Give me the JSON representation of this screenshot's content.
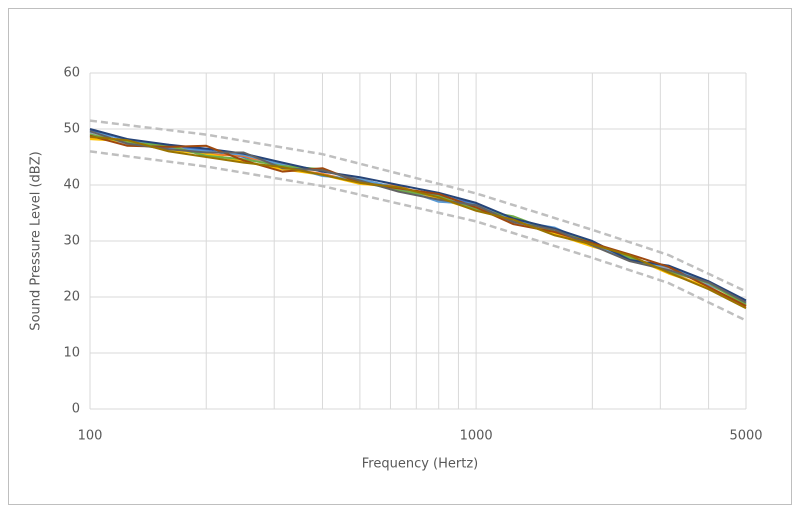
{
  "chart_data": {
    "type": "line",
    "x_label": "Frequency (Hertz)",
    "y_label": "Sound Pressure Level (dBZ)",
    "xscale": "log",
    "xlim": [
      100,
      5000
    ],
    "xticks": [
      100,
      1000,
      5000
    ],
    "xminor": [
      200,
      300,
      400,
      500,
      600,
      700,
      800,
      900,
      2000,
      3000,
      4000
    ],
    "ylim": [
      0,
      60
    ],
    "yticks": [
      0,
      10,
      20,
      30,
      40,
      50,
      60
    ],
    "grid": true,
    "x": [
      100,
      125,
      160,
      200,
      250,
      315,
      400,
      500,
      630,
      800,
      1000,
      1250,
      1600,
      2000,
      2500,
      3150,
      4000,
      5000
    ],
    "series": [
      {
        "color": "#4472c4",
        "values": [
          49.8,
          48,
          47,
          46.2,
          45,
          43.2,
          42.6,
          41,
          39,
          38.2,
          36.5,
          33.5,
          32,
          29.8,
          26.8,
          25.2,
          22.2,
          19.2
        ]
      },
      {
        "color": "#ed7d31",
        "values": [
          48.5,
          47.5,
          46.5,
          45.5,
          45.2,
          43,
          42,
          40.5,
          39.8,
          37.5,
          35.8,
          34,
          31.5,
          29.2,
          27.3,
          24.5,
          21.6,
          18.3
        ]
      },
      {
        "color": "#a5a5a5",
        "values": [
          49.2,
          47.2,
          47.2,
          45.2,
          44.5,
          43.8,
          42.5,
          41.2,
          39.2,
          37.2,
          36.2,
          33.2,
          32.2,
          29.6,
          26.5,
          25,
          22.3,
          19
        ]
      },
      {
        "color": "#ffc000",
        "values": [
          48.2,
          47.8,
          46.2,
          45.6,
          44.2,
          42.8,
          41.8,
          40.2,
          39.6,
          37.6,
          35.5,
          34.2,
          31.2,
          29,
          27.2,
          24.2,
          21.8,
          18.5
        ]
      },
      {
        "color": "#5b9bd5",
        "values": [
          49.5,
          48.2,
          46.6,
          46,
          45.4,
          43.6,
          41.6,
          41,
          39.5,
          37,
          36.6,
          33.6,
          32.4,
          29.4,
          26.6,
          25.4,
          22.4,
          18.8
        ]
      },
      {
        "color": "#70ad47",
        "values": [
          49,
          47.6,
          47,
          45.2,
          44.6,
          43.4,
          42.8,
          40.6,
          39,
          38,
          35.6,
          34.4,
          31.6,
          29.8,
          27,
          24.6,
          22.5,
          18.6
        ]
      },
      {
        "color": "#264478",
        "values": [
          50,
          48.2,
          47.2,
          46.5,
          45.6,
          44,
          42.4,
          41.4,
          40,
          38.6,
          36.8,
          34,
          32.2,
          30,
          26.6,
          25.6,
          22.8,
          19.4
        ]
      },
      {
        "color": "#9e480e",
        "values": [
          48.8,
          47,
          46.8,
          47,
          44.4,
          42.4,
          43,
          40.4,
          39.4,
          38.4,
          36,
          33,
          31.6,
          29.6,
          27.6,
          25.4,
          21.8,
          18.4
        ]
      },
      {
        "color": "#636363",
        "values": [
          49.6,
          47.4,
          46.4,
          45.8,
          45.8,
          43,
          42.6,
          40.8,
          38.8,
          37.4,
          36.4,
          33.4,
          32,
          29.2,
          26.4,
          24.8,
          22.6,
          19
        ]
      },
      {
        "color": "#997300",
        "values": [
          48.6,
          48,
          46,
          45,
          44,
          43.2,
          41.8,
          40.4,
          39.6,
          37.8,
          35.4,
          33.8,
          31,
          29.4,
          27.4,
          24.4,
          21.4,
          18
        ]
      },
      {
        "color": "#bfbfbf",
        "dashed": true,
        "x": [
          100,
          200,
          400,
          1000,
          2000,
          3150,
          5000
        ],
        "values": [
          51.5,
          49,
          45.5,
          38.5,
          32,
          27.5,
          21
        ]
      },
      {
        "color": "#bfbfbf",
        "dashed": true,
        "x": [
          100,
          200,
          400,
          1000,
          2000,
          3150,
          5000
        ],
        "values": [
          46,
          43.3,
          39.8,
          33.5,
          27,
          22.5,
          15.8
        ]
      }
    ]
  }
}
